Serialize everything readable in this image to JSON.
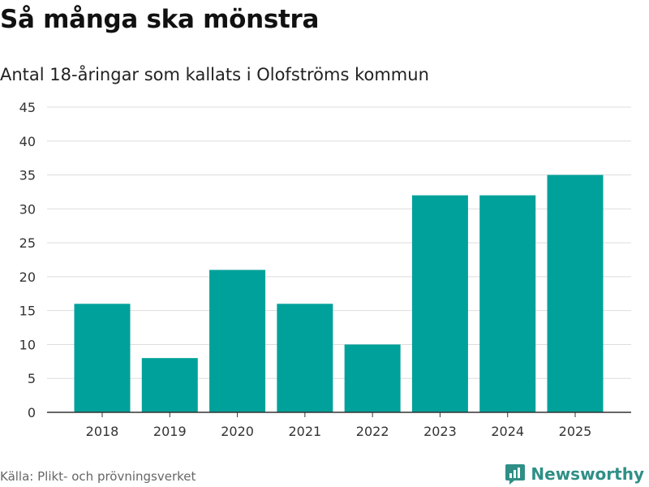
{
  "title": "Så många ska mönstra",
  "subtitle": "Antal 18-åringar som kallats i Olofströms kommun",
  "source": "Källa: Plikt- och prövningsverket",
  "brand": "Newsworthy",
  "colors": {
    "bar": "#00a19a",
    "grid": "#dddddd",
    "axis": "#333333",
    "brand": "#2f8f86"
  },
  "chart_data": {
    "type": "bar",
    "categories": [
      "2018",
      "2019",
      "2020",
      "2021",
      "2022",
      "2023",
      "2024",
      "2025"
    ],
    "values": [
      16,
      8,
      21,
      16,
      10,
      32,
      32,
      35
    ],
    "ylim": [
      0,
      45
    ],
    "yticks": [
      0,
      5,
      10,
      15,
      20,
      25,
      30,
      35,
      40,
      45
    ],
    "xlabel": "",
    "ylabel": "",
    "grid": true
  }
}
